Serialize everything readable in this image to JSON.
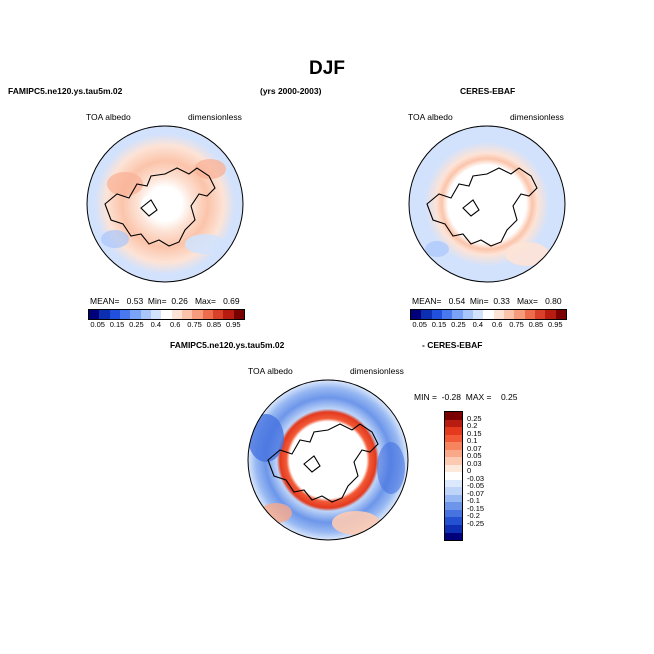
{
  "season": "DJF",
  "period": "(yrs 2000-2003)",
  "panels": {
    "model": {
      "case": "FAMIPC5.ne120.ys.tau5m.02",
      "variable": "TOA albedo",
      "units": "dimensionless",
      "stats": {
        "mean_label": "MEAN=",
        "mean": "0.53",
        "min_label": "Min=",
        "min": "0.26",
        "max_label": "Max=",
        "max": "0.69"
      }
    },
    "obs": {
      "case": "CERES-EBAF",
      "variable": "TOA albedo",
      "units": "dimensionless",
      "stats": {
        "mean_label": "MEAN=",
        "mean": "0.54",
        "min_label": "Min=",
        "min": "0.33",
        "max_label": "Max=",
        "max": "0.80"
      }
    },
    "diff": {
      "case_a": "FAMIPC5.ne120.ys.tau5m.02",
      "case_b": "- CERES-EBAF",
      "variable": "TOA albedo",
      "units": "dimensionless",
      "stats": {
        "min_label": "MIN =",
        "min": "-0.28",
        "max_label": "MAX =",
        "max": "0.25"
      }
    }
  },
  "colorbar_abs": {
    "labels": [
      "0.05",
      "0.15",
      "0.25",
      "0.4",
      "0.6",
      "0.75",
      "0.85",
      "0.95"
    ],
    "colors": [
      "#00007a",
      "#0b2fb0",
      "#2050dc",
      "#4a78ee",
      "#7aa2f7",
      "#a9c6fb",
      "#d2e2fc",
      "#ffffff",
      "#fde3d6",
      "#fbc4aa",
      "#f69b7b",
      "#ec6c4c",
      "#d9402a",
      "#b81c10",
      "#7a0000"
    ]
  },
  "colorbar_diff": {
    "labels": [
      "0.25",
      "0.2",
      "0.15",
      "0.1",
      "0.07",
      "0.05",
      "0.03",
      "0",
      "-0.03",
      "-0.05",
      "-0.07",
      "-0.1",
      "-0.15",
      "-0.2",
      "-0.25"
    ],
    "colors": [
      "#7a0000",
      "#b81c10",
      "#e33a1e",
      "#f25a37",
      "#f6845f",
      "#f9a98a",
      "#fccab3",
      "#fde8dc",
      "#ffffff",
      "#dce8fb",
      "#bed4f8",
      "#97b8f2",
      "#6d96ea",
      "#4673e0",
      "#2450d2",
      "#0e2fb4",
      "#00007a"
    ]
  }
}
